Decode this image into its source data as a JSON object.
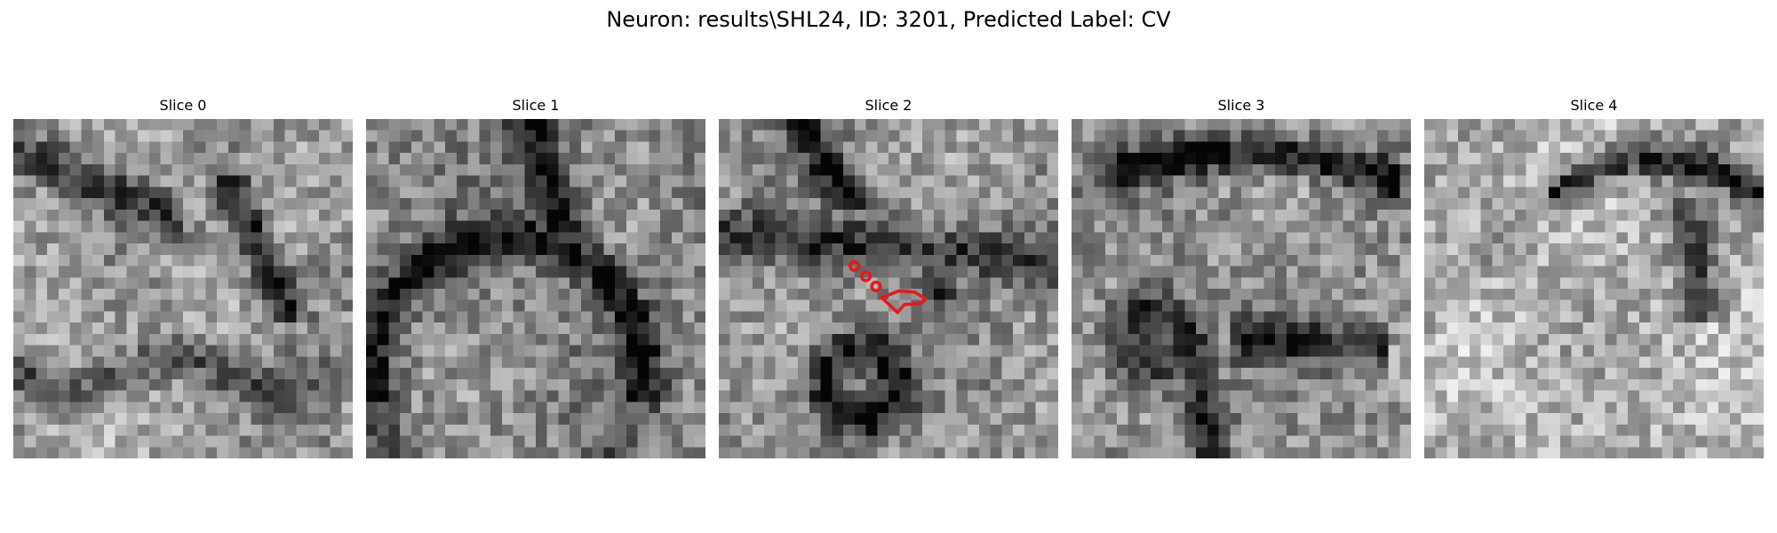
{
  "figure": {
    "title": "Neuron: results\\SHL24, ID: 3201, Predicted Label: CV"
  },
  "panels": [
    {
      "title": "Slice 0",
      "seed": 11,
      "bias": 0.05,
      "dark_band": "diag-down"
    },
    {
      "title": "Slice 1",
      "seed": 23,
      "bias": -0.05,
      "dark_band": "arc"
    },
    {
      "title": "Slice 2",
      "seed": 37,
      "bias": 0.0,
      "dark_band": "cross",
      "annotation": "red-contour"
    },
    {
      "title": "Slice 3",
      "seed": 51,
      "bias": -0.02,
      "dark_band": "top-arc"
    },
    {
      "title": "Slice 4",
      "seed": 67,
      "bias": 0.12,
      "dark_band": "top-right"
    }
  ],
  "colors": {
    "annotation": "#e31a1c",
    "background": "#ffffff"
  },
  "image": {
    "colormap": "gray",
    "grid_size": 30
  }
}
